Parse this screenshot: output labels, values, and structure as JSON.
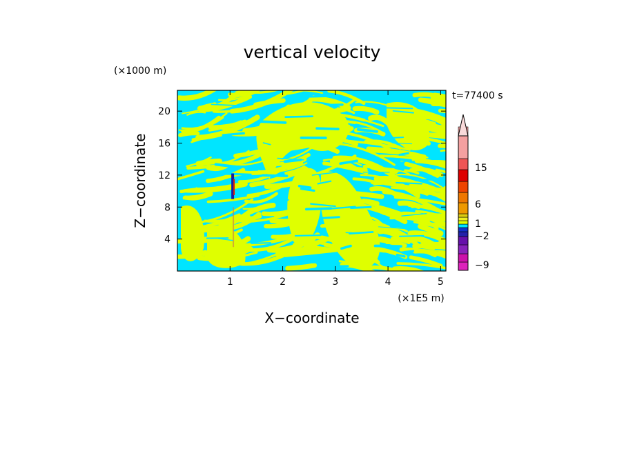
{
  "chart_data": {
    "type": "heatmap",
    "title": "vertical velocity",
    "xlabel": "X−coordinate",
    "ylabel": "Z−coordinate",
    "x_unit_label": "(×1E5 m)",
    "y_unit_label": "(×1000 m)",
    "time_label": "t=77400 s",
    "xlim": [
      0,
      5.1
    ],
    "ylim": [
      0,
      22.6
    ],
    "x_ticks": [
      "1",
      "2",
      "3",
      "4",
      "5"
    ],
    "y_ticks": [
      "4",
      "8",
      "12",
      "16",
      "20"
    ],
    "colorbar": {
      "levels_bottom_to_top": [
        {
          "color": "#dd22bb"
        },
        {
          "color": "#cc11aa"
        },
        {
          "color": "#8822bb"
        },
        {
          "color": "#6611aa"
        },
        {
          "color": "#2222aa"
        },
        {
          "color": "#1133cc"
        },
        {
          "color": "#00e5ff"
        },
        {
          "color": "#dfff00"
        },
        {
          "color": "#eeee22"
        },
        {
          "color": "#ddcc11"
        },
        {
          "color": "#ee9900"
        },
        {
          "color": "#ee7700"
        },
        {
          "color": "#ee4400"
        },
        {
          "color": "#dd0000"
        },
        {
          "color": "#ee5555"
        },
        {
          "color": "#f4a0a0"
        }
      ],
      "tick_labels": [
        "−9",
        "−2",
        "1",
        "6",
        "15"
      ],
      "extend": "max"
    },
    "dominant_colors": {
      "negative_weak": "#00e5ff",
      "positive_weak": "#dfff00",
      "strong_neg": "#1a1aa0",
      "strong_pos": "#dd2200"
    }
  }
}
